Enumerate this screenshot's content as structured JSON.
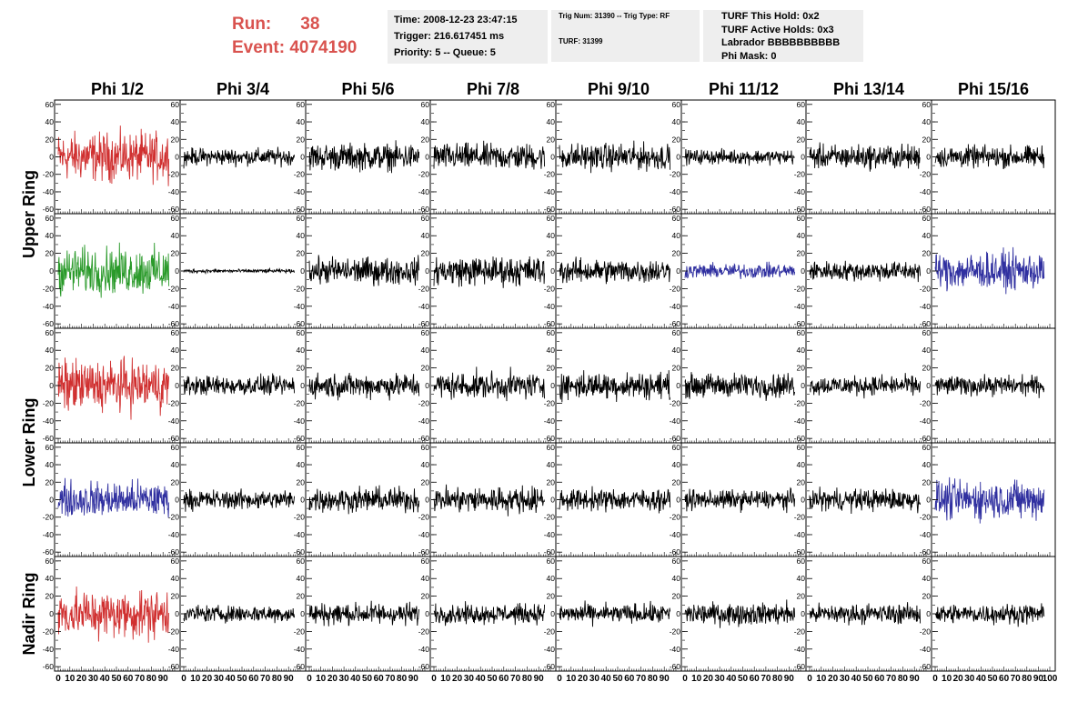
{
  "header": {
    "run_label": "Run:",
    "run_value": "38",
    "event_label": "Event:",
    "event_value": "4074190",
    "time": "Time: 2008-12-23 23:47:15",
    "trigger": "Trigger: 216.617451 ms",
    "priority": "Priority: 5 -- Queue: 5",
    "trig_num": "Trig Num: 31390 -- Trig Type: RF",
    "turf": "TURF: 31399",
    "turf_this_hold": "TURF This Hold: 0x2",
    "turf_active_holds": "TURF Active Holds: 0x3",
    "labrador": "Labrador BBBBBBBBBB",
    "phi_mask": "Phi Mask: 0"
  },
  "colors": {
    "black": "#000000",
    "red": "#d03030",
    "green": "#2a9a2a",
    "blue": "#3030a0"
  },
  "chart_data": {
    "type": "line",
    "columns": [
      "Phi 1/2",
      "Phi 3/4",
      "Phi 5/6",
      "Phi 7/8",
      "Phi 9/10",
      "Phi 11/12",
      "Phi 13/14",
      "Phi 15/16"
    ],
    "ring_labels": [
      "Upper Ring",
      "Lower Ring",
      "Nadir Ring"
    ],
    "ylim": [
      -65,
      65
    ],
    "yticks": [
      -60,
      -40,
      -20,
      0,
      20,
      40,
      60
    ],
    "xlim": [
      0,
      100
    ],
    "xticks": [
      0,
      10,
      20,
      30,
      40,
      50,
      60,
      70,
      80,
      90,
      100
    ],
    "x_extent": 95,
    "rows": [
      {
        "traces": [
          {
            "color": "red",
            "amplitude": 40
          },
          {
            "color": "black",
            "amplitude": 14
          },
          {
            "color": "black",
            "amplitude": 22
          },
          {
            "color": "black",
            "amplitude": 22
          },
          {
            "color": "black",
            "amplitude": 22
          },
          {
            "color": "black",
            "amplitude": 12
          },
          {
            "color": "black",
            "amplitude": 20
          },
          {
            "color": "black",
            "amplitude": 18
          }
        ]
      },
      {
        "traces": [
          {
            "color": "green",
            "amplitude": 38
          },
          {
            "color": "black",
            "amplitude": 3
          },
          {
            "color": "black",
            "amplitude": 22
          },
          {
            "color": "black",
            "amplitude": 24
          },
          {
            "color": "black",
            "amplitude": 20
          },
          {
            "color": "blue",
            "amplitude": 12
          },
          {
            "color": "black",
            "amplitude": 16
          },
          {
            "color": "blue",
            "amplitude": 30
          }
        ]
      },
      {
        "traces": [
          {
            "color": "red",
            "amplitude": 42
          },
          {
            "color": "black",
            "amplitude": 16
          },
          {
            "color": "black",
            "amplitude": 20
          },
          {
            "color": "black",
            "amplitude": 22
          },
          {
            "color": "black",
            "amplitude": 22
          },
          {
            "color": "black",
            "amplitude": 20
          },
          {
            "color": "black",
            "amplitude": 16
          },
          {
            "color": "black",
            "amplitude": 16
          }
        ]
      },
      {
        "traces": [
          {
            "color": "blue",
            "amplitude": 30
          },
          {
            "color": "black",
            "amplitude": 16
          },
          {
            "color": "black",
            "amplitude": 20
          },
          {
            "color": "black",
            "amplitude": 22
          },
          {
            "color": "black",
            "amplitude": 18
          },
          {
            "color": "black",
            "amplitude": 16
          },
          {
            "color": "black",
            "amplitude": 18
          },
          {
            "color": "blue",
            "amplitude": 32
          }
        ]
      },
      {
        "traces": [
          {
            "color": "red",
            "amplitude": 40
          },
          {
            "color": "black",
            "amplitude": 14
          },
          {
            "color": "black",
            "amplitude": 18
          },
          {
            "color": "black",
            "amplitude": 16
          },
          {
            "color": "black",
            "amplitude": 16
          },
          {
            "color": "black",
            "amplitude": 18
          },
          {
            "color": "black",
            "amplitude": 16
          },
          {
            "color": "black",
            "amplitude": 16
          }
        ]
      }
    ]
  }
}
